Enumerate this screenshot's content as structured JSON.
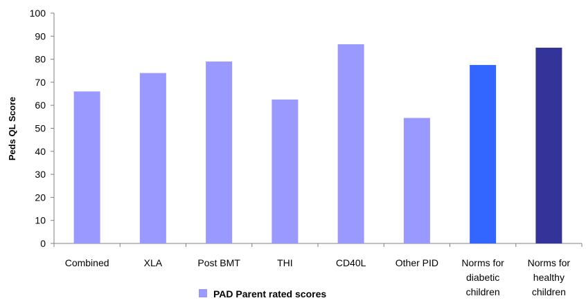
{
  "chart_data": {
    "type": "bar",
    "categories": [
      [
        "Combined"
      ],
      [
        "XLA"
      ],
      [
        "Post BMT"
      ],
      [
        "THI"
      ],
      [
        "CD40L"
      ],
      [
        "Other PID"
      ],
      [
        "Norms for",
        "diabetic",
        "children"
      ],
      [
        "Norms for",
        "healthy",
        "children"
      ]
    ],
    "values": [
      66,
      74,
      79,
      62.5,
      86.5,
      54.5,
      77.5,
      85
    ],
    "bar_colors": [
      "#9999FF",
      "#9999FF",
      "#9999FF",
      "#9999FF",
      "#9999FF",
      "#9999FF",
      "#3366FF",
      "#333399"
    ],
    "ylabel": "Peds QL Score",
    "ylim": [
      0,
      100
    ],
    "yticks": [
      0,
      10,
      20,
      30,
      40,
      50,
      60,
      70,
      80,
      90,
      100
    ],
    "grid": false,
    "legend": {
      "placement": "bottom-left",
      "entries": [
        {
          "label": "PAD Parent rated scores",
          "color": "#9999FF"
        }
      ]
    }
  }
}
